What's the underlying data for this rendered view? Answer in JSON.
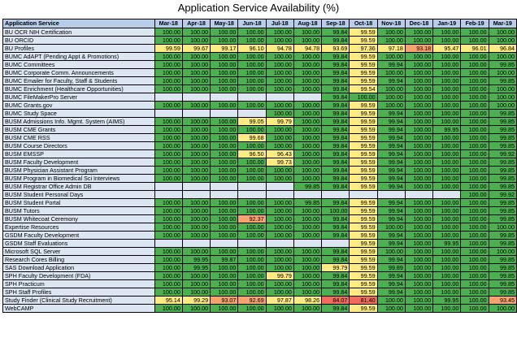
{
  "chart_data": {
    "type": "table",
    "title": "Application Service Availability (%)",
    "header_label": "Application Service",
    "columns": [
      "Mar-18",
      "Apr-18",
      "May-18",
      "Jun-18",
      "Jul-18",
      "Aug-18",
      "Sep-18",
      "Oct-18",
      "Nov-18",
      "Dec-18",
      "Jan-19",
      "Feb-19",
      "Mar-19"
    ],
    "rows": [
      {
        "name": "BU OCR NIH Certification",
        "values": [
          "100.00",
          "100.00",
          "100.00",
          "100.00",
          "100.00",
          "100.00",
          "99.84",
          "99.59",
          "100.00",
          "100.00",
          "100.00",
          "100.00",
          "100.00"
        ]
      },
      {
        "name": "BU ORCID",
        "values": [
          "100.00",
          "100.00",
          "100.00",
          "100.00",
          "100.00",
          "100.00",
          "99.84",
          "99.59",
          "100.00",
          "100.00",
          "100.00",
          "100.00",
          "100.00"
        ]
      },
      {
        "name": "BU Profiles",
        "values": [
          "99.59",
          "99.67",
          "99.17",
          "96.10",
          "94.78",
          "94.78",
          "93.69",
          "97.36",
          "97.18",
          "93.18",
          "95.47",
          "96.01",
          "96.84"
        ]
      },
      {
        "name": "BUMC AdAPT (Pending Appt & Promotions)",
        "values": [
          "100.00",
          "100.00",
          "100.00",
          "100.00",
          "100.00",
          "100.00",
          "99.84",
          "99.59",
          "100.00",
          "100.00",
          "100.00",
          "100.00",
          "100.00"
        ]
      },
      {
        "name": "BUMC Committees",
        "values": [
          "100.00",
          "100.00",
          "100.00",
          "100.00",
          "100.00",
          "100.00",
          "99.84",
          "99.59",
          "99.94",
          "100.00",
          "100.00",
          "100.00",
          "99.85"
        ]
      },
      {
        "name": "BUMC Corporate Comm. Announcements",
        "values": [
          "100.00",
          "100.00",
          "100.00",
          "100.00",
          "100.00",
          "100.00",
          "99.84",
          "99.59",
          "100.00",
          "100.00",
          "100.00",
          "100.00",
          "100.00"
        ]
      },
      {
        "name": "BUMC Emailer for Faculty, Staff & Students",
        "values": [
          "100.00",
          "100.00",
          "100.00",
          "100.00",
          "100.00",
          "100.00",
          "99.84",
          "99.59",
          "99.94",
          "100.00",
          "100.00",
          "100.00",
          "99.85"
        ]
      },
      {
        "name": "BUMC Enrichment (Healthcare Opportunities)",
        "values": [
          "100.00",
          "100.00",
          "100.00",
          "100.00",
          "100.00",
          "100.00",
          "99.84",
          "99.54",
          "100.00",
          "100.00",
          "100.00",
          "100.00",
          "100.00"
        ]
      },
      {
        "name": "BUMC FileMakerPro Server",
        "values": [
          "",
          "",
          "",
          "",
          "",
          "",
          "99.84",
          "100.00",
          "100.00",
          "100.00",
          "100.00",
          "100.00",
          "100.00"
        ]
      },
      {
        "name": "BUMC Grants.gov",
        "values": [
          "100.00",
          "100.00",
          "100.00",
          "100.00",
          "100.00",
          "100.00",
          "99.84",
          "99.59",
          "100.00",
          "100.00",
          "100.00",
          "100.00",
          "100.00"
        ]
      },
      {
        "name": "BUMC Study Space",
        "values": [
          "",
          "",
          "",
          "",
          "100.00",
          "100.00",
          "99.84",
          "99.59",
          "99.94",
          "100.00",
          "100.00",
          "100.00",
          "99.85"
        ]
      },
      {
        "name": "BUSM Admissions Info. Mgmt. System (AIMS)",
        "values": [
          "100.00",
          "100.00",
          "100.00",
          "99.05",
          "99.79",
          "100.00",
          "99.84",
          "99.59",
          "99.94",
          "100.00",
          "100.00",
          "100.00",
          "99.85"
        ]
      },
      {
        "name": "BUSM CME Grants",
        "values": [
          "100.00",
          "100.00",
          "100.00",
          "100.00",
          "100.00",
          "100.00",
          "99.84",
          "99.59",
          "99.94",
          "100.00",
          "99.95",
          "100.00",
          "99.85"
        ]
      },
      {
        "name": "BUSM CME RSS",
        "values": [
          "100.00",
          "100.00",
          "100.00",
          "99.68",
          "100.00",
          "100.00",
          "99.84",
          "99.59",
          "99.94",
          "100.00",
          "100.00",
          "100.00",
          "99.85"
        ]
      },
      {
        "name": "BUSM Course Directors",
        "values": [
          "100.00",
          "100.00",
          "100.00",
          "100.00",
          "100.00",
          "100.00",
          "99.84",
          "99.59",
          "99.94",
          "100.00",
          "100.00",
          "100.00",
          "99.85"
        ]
      },
      {
        "name": "BUSM EMSSP",
        "values": [
          "100.00",
          "100.00",
          "100.00",
          "96.50",
          "96.43",
          "100.00",
          "99.84",
          "99.59",
          "99.94",
          "100.00",
          "100.00",
          "100.00",
          "99.92"
        ]
      },
      {
        "name": "BUSM Faculty Development",
        "values": [
          "100.00",
          "100.00",
          "100.00",
          "100.00",
          "99.73",
          "100.00",
          "99.84",
          "99.59",
          "99.94",
          "100.00",
          "100.00",
          "100.00",
          "99.85"
        ]
      },
      {
        "name": "BUSM Physician Assistant Program",
        "values": [
          "100.00",
          "100.00",
          "100.00",
          "100.00",
          "100.00",
          "100.00",
          "99.84",
          "99.59",
          "99.94",
          "100.00",
          "100.00",
          "100.00",
          "99.85"
        ]
      },
      {
        "name": "BUSM Program in Biomedical Sci Interviews",
        "values": [
          "100.00",
          "100.00",
          "100.00",
          "100.00",
          "100.00",
          "100.00",
          "99.84",
          "99.59",
          "99.94",
          "100.00",
          "100.00",
          "100.00",
          "99.85"
        ]
      },
      {
        "name": "BUSM Registrar Office Admin DB",
        "values": [
          "",
          "",
          "",
          "",
          "",
          "99.85",
          "99.84",
          "99.59",
          "99.94",
          "100.00",
          "100.00",
          "100.00",
          "99.85"
        ]
      },
      {
        "name": "BUSM Student Personal Days",
        "values": [
          "",
          "",
          "",
          "",
          "",
          "",
          "",
          "",
          "",
          "",
          "",
          "100.00",
          "99.92"
        ]
      },
      {
        "name": "BUSM Student Portal",
        "values": [
          "100.00",
          "100.00",
          "100.00",
          "100.00",
          "100.00",
          "99.85",
          "99.84",
          "99.59",
          "99.94",
          "100.00",
          "100.00",
          "100.00",
          "99.85"
        ]
      },
      {
        "name": "BUSM Tutors",
        "values": [
          "100.00",
          "100.00",
          "100.00",
          "100.00",
          "100.00",
          "100.00",
          "100.00",
          "99.59",
          "99.94",
          "100.00",
          "100.00",
          "100.00",
          "99.85"
        ]
      },
      {
        "name": "BUSM Whitecoat Ceremony",
        "values": [
          "100.00",
          "100.00",
          "100.00",
          "92.37",
          "100.00",
          "100.00",
          "99.84",
          "99.59",
          "99.94",
          "100.00",
          "100.00",
          "100.00",
          "99.85"
        ]
      },
      {
        "name": "Expertise Resources",
        "values": [
          "100.00",
          "100.00",
          "100.00",
          "100.00",
          "100.00",
          "100.00",
          "99.84",
          "99.59",
          "100.00",
          "100.00",
          "100.00",
          "100.00",
          "100.00"
        ]
      },
      {
        "name": "GSDM Faculty Development",
        "values": [
          "100.00",
          "100.00",
          "100.00",
          "100.00",
          "100.00",
          "100.00",
          "99.84",
          "99.59",
          "99.94",
          "100.00",
          "100.00",
          "100.00",
          "99.85"
        ]
      },
      {
        "name": "GSDM Staff Evaluations",
        "values": [
          "",
          "",
          "",
          "",
          "",
          "",
          "",
          "99.59",
          "99.94",
          "100.00",
          "99.95",
          "100.00",
          "99.85"
        ]
      },
      {
        "name": "Microsoft SQL Server",
        "values": [
          "100.00",
          "100.00",
          "100.00",
          "100.00",
          "100.00",
          "100.00",
          "99.84",
          "99.59",
          "100.00",
          "100.00",
          "100.00",
          "100.00",
          "100.00"
        ]
      },
      {
        "name": "Research Cores Billing",
        "values": [
          "100.00",
          "99.95",
          "99.87",
          "100.00",
          "100.00",
          "100.00",
          "99.84",
          "99.59",
          "99.94",
          "100.00",
          "100.00",
          "100.00",
          "99.85"
        ]
      },
      {
        "name": "SAS Download Application",
        "values": [
          "100.00",
          "99.95",
          "100.00",
          "100.00",
          "100.00",
          "100.00",
          "99.79",
          "99.59",
          "99.89",
          "100.00",
          "100.00",
          "100.00",
          "99.85"
        ]
      },
      {
        "name": "SPH Faculty Development (FDA)",
        "values": [
          "100.00",
          "100.00",
          "100.00",
          "100.00",
          "99.79",
          "100.00",
          "99.84",
          "99.59",
          "99.94",
          "100.00",
          "100.00",
          "100.00",
          "99.85"
        ]
      },
      {
        "name": "SPH Practicum",
        "values": [
          "100.00",
          "100.00",
          "100.00",
          "100.00",
          "100.00",
          "100.00",
          "99.84",
          "99.59",
          "99.94",
          "100.00",
          "100.00",
          "100.00",
          "99.85"
        ]
      },
      {
        "name": "SPH Staff Profiles",
        "values": [
          "100.00",
          "100.00",
          "100.00",
          "100.00",
          "100.00",
          "100.00",
          "99.84",
          "99.59",
          "99.94",
          "100.00",
          "100.00",
          "100.00",
          "99.85"
        ]
      },
      {
        "name": "Study Finder (Clinical Study Recruitment)",
        "values": [
          "95.14",
          "99.29",
          "93.07",
          "92.69",
          "97.87",
          "98.26",
          "84.07",
          "81.40",
          "100.00",
          "100.00",
          "99.95",
          "100.00",
          "93.45"
        ]
      },
      {
        "name": "WebCAMP",
        "values": [
          "100.00",
          "100.00",
          "100.00",
          "100.00",
          "100.00",
          "100.00",
          "99.84",
          "99.59",
          "100.00",
          "100.00",
          "100.00",
          "100.00",
          "100.00"
        ]
      }
    ],
    "colors": {
      "header": "#b7cdea",
      "name_cell": "#dce6f2",
      "high": "#4caf50",
      "mid": "#ffeb84",
      "low": "#f8a26e",
      "critical": "#f26b5b",
      "empty": "#dce6f2"
    }
  }
}
